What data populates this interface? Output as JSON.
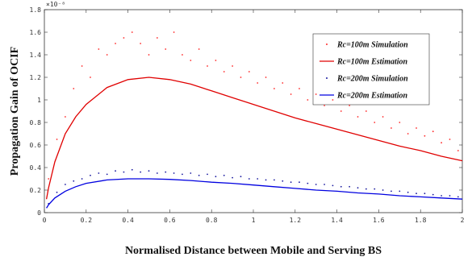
{
  "chart_data": {
    "type": "line",
    "x_label": "Normalised Distance between Mobile and Serving BS",
    "y_label": "Propagation Gain of OCIF",
    "y_multiplier": "×10⁻⁸",
    "xlim": [
      0,
      2
    ],
    "ylim": [
      0,
      1.8
    ],
    "xticks": [
      0,
      0.2,
      0.4,
      0.6,
      0.8,
      1,
      1.2,
      1.4,
      1.6,
      1.8,
      2
    ],
    "yticks": [
      0,
      0.2,
      0.4,
      0.6,
      0.8,
      1,
      1.2,
      1.4,
      1.6,
      1.8
    ],
    "legend_position": "upper right",
    "series": [
      {
        "name": "Rc=100m Simulation",
        "type": "scatter",
        "color": "#ff2a2a",
        "x": [
          0.02,
          0.06,
          0.1,
          0.14,
          0.18,
          0.22,
          0.26,
          0.3,
          0.34,
          0.38,
          0.42,
          0.46,
          0.5,
          0.54,
          0.58,
          0.62,
          0.66,
          0.7,
          0.74,
          0.78,
          0.82,
          0.86,
          0.9,
          0.94,
          0.98,
          1.02,
          1.06,
          1.1,
          1.14,
          1.18,
          1.22,
          1.26,
          1.3,
          1.34,
          1.38,
          1.42,
          1.46,
          1.5,
          1.54,
          1.58,
          1.62,
          1.66,
          1.7,
          1.74,
          1.78,
          1.82,
          1.86,
          1.9,
          1.94,
          1.98
        ],
        "values": [
          0.3,
          0.65,
          0.85,
          1.1,
          1.3,
          1.2,
          1.45,
          1.4,
          1.5,
          1.55,
          1.6,
          1.5,
          1.4,
          1.55,
          1.45,
          1.6,
          1.4,
          1.35,
          1.45,
          1.3,
          1.35,
          1.25,
          1.3,
          1.2,
          1.25,
          1.15,
          1.2,
          1.1,
          1.15,
          1.05,
          1.1,
          1.0,
          1.05,
          0.95,
          1.0,
          0.9,
          0.95,
          0.85,
          0.9,
          0.8,
          0.85,
          0.75,
          0.8,
          0.7,
          0.75,
          0.68,
          0.72,
          0.62,
          0.65,
          0.55
        ]
      },
      {
        "name": "Rc=100m Estimation",
        "type": "line",
        "color": "#e00000",
        "x": [
          0.01,
          0.02,
          0.05,
          0.1,
          0.15,
          0.2,
          0.3,
          0.4,
          0.5,
          0.6,
          0.7,
          0.8,
          0.9,
          1.0,
          1.1,
          1.2,
          1.3,
          1.4,
          1.5,
          1.6,
          1.7,
          1.8,
          1.9,
          2.0
        ],
        "values": [
          0.12,
          0.22,
          0.45,
          0.7,
          0.85,
          0.96,
          1.11,
          1.18,
          1.2,
          1.18,
          1.14,
          1.08,
          1.02,
          0.96,
          0.9,
          0.84,
          0.79,
          0.74,
          0.69,
          0.64,
          0.59,
          0.55,
          0.5,
          0.46
        ]
      },
      {
        "name": "Rc=200m Simulation",
        "type": "scatter",
        "color": "#1a1aa0",
        "x": [
          0.02,
          0.06,
          0.1,
          0.14,
          0.18,
          0.22,
          0.26,
          0.3,
          0.34,
          0.38,
          0.42,
          0.46,
          0.5,
          0.54,
          0.58,
          0.62,
          0.66,
          0.7,
          0.74,
          0.78,
          0.82,
          0.86,
          0.9,
          0.94,
          0.98,
          1.02,
          1.06,
          1.1,
          1.14,
          1.18,
          1.22,
          1.26,
          1.3,
          1.34,
          1.38,
          1.42,
          1.46,
          1.5,
          1.54,
          1.58,
          1.62,
          1.66,
          1.7,
          1.74,
          1.78,
          1.82,
          1.86,
          1.9,
          1.94,
          1.98
        ],
        "values": [
          0.08,
          0.18,
          0.25,
          0.28,
          0.3,
          0.33,
          0.35,
          0.34,
          0.37,
          0.36,
          0.38,
          0.36,
          0.37,
          0.35,
          0.36,
          0.35,
          0.34,
          0.35,
          0.33,
          0.34,
          0.32,
          0.33,
          0.31,
          0.32,
          0.3,
          0.3,
          0.29,
          0.29,
          0.28,
          0.27,
          0.27,
          0.26,
          0.25,
          0.25,
          0.24,
          0.23,
          0.23,
          0.22,
          0.21,
          0.21,
          0.2,
          0.19,
          0.19,
          0.18,
          0.17,
          0.17,
          0.16,
          0.15,
          0.15,
          0.14
        ]
      },
      {
        "name": "Rc=200m Estimation",
        "type": "line",
        "color": "#0000e0",
        "x": [
          0.01,
          0.02,
          0.05,
          0.1,
          0.15,
          0.2,
          0.3,
          0.4,
          0.5,
          0.6,
          0.7,
          0.8,
          0.9,
          1.0,
          1.1,
          1.2,
          1.3,
          1.4,
          1.5,
          1.6,
          1.7,
          1.8,
          1.9,
          2.0
        ],
        "values": [
          0.04,
          0.07,
          0.13,
          0.19,
          0.23,
          0.26,
          0.29,
          0.3,
          0.3,
          0.295,
          0.285,
          0.27,
          0.26,
          0.245,
          0.23,
          0.215,
          0.2,
          0.19,
          0.175,
          0.165,
          0.15,
          0.14,
          0.13,
          0.12
        ]
      }
    ]
  }
}
